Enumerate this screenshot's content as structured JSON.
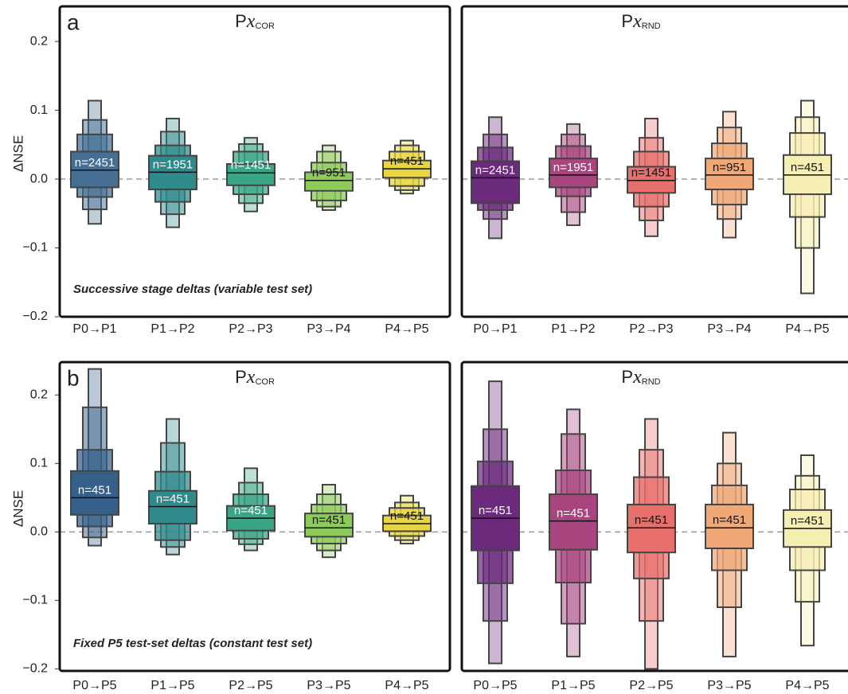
{
  "chart_data": [
    {
      "type": "boxen",
      "panel_letter": "a",
      "title": {
        "main": "P",
        "var": "x",
        "sub": "COR"
      },
      "annotation": "Successive stage deltas (variable test set)",
      "y_label": "ΔNSE",
      "categories": [
        "P0→P1",
        "P1→P2",
        "P2→P3",
        "P3→P4",
        "P4→P5"
      ],
      "ylim": [
        -0.2,
        0.251
      ],
      "reference_line": 0,
      "yticks": [
        {
          "value": -0.2,
          "label": "−0.2"
        },
        {
          "value": -0.1,
          "label": "−0.1"
        },
        {
          "value": 0,
          "label": "0.0"
        },
        0.1,
        0.2
      ],
      "boxes": [
        {
          "color": "#456f94",
          "median": 0.013,
          "label": "n=2451",
          "levels": [
            [
              -0.012,
              0.04
            ],
            [
              -0.026,
              0.065
            ],
            [
              -0.044,
              0.086
            ],
            [
              -0.065,
              0.114
            ]
          ]
        },
        {
          "color": "#2f8a8c",
          "median": 0.01,
          "label": "n=1951",
          "levels": [
            [
              -0.015,
              0.034
            ],
            [
              -0.033,
              0.049
            ],
            [
              -0.051,
              0.069
            ],
            [
              -0.07,
              0.088
            ]
          ]
        },
        {
          "color": "#3aa585",
          "median": 0.009,
          "label": "n=1451",
          "levels": [
            [
              -0.009,
              0.022
            ],
            [
              -0.022,
              0.04
            ],
            [
              -0.035,
              0.051
            ],
            [
              -0.047,
              0.06
            ]
          ]
        },
        {
          "color": "#8cca5a",
          "median": -0.002,
          "label": "n=951",
          "levels": [
            [
              -0.017,
              0.01
            ],
            [
              -0.031,
              0.024
            ],
            [
              -0.04,
              0.04
            ],
            [
              -0.045,
              0.049
            ]
          ]
        },
        {
          "color": "#e8d540",
          "median": 0.015,
          "label": "n=451",
          "levels": [
            [
              0.002,
              0.027
            ],
            [
              -0.01,
              0.04
            ],
            [
              -0.016,
              0.049
            ],
            [
              -0.021,
              0.056
            ]
          ]
        }
      ]
    },
    {
      "type": "boxen",
      "title": {
        "main": "P",
        "var": "x",
        "sub": "RND"
      },
      "categories": [
        "P0→P1",
        "P1→P2",
        "P2→P3",
        "P3→P4",
        "P4→P5"
      ],
      "ylim": [
        -0.2,
        0.251
      ],
      "reference_line": 0,
      "boxes": [
        {
          "color": "#6b2a7b",
          "median": 0.002,
          "label": "n=2451",
          "levels": [
            [
              -0.035,
              0.026
            ],
            [
              -0.045,
              0.046
            ],
            [
              -0.058,
              0.065
            ],
            [
              -0.086,
              0.09
            ]
          ]
        },
        {
          "color": "#a8457f",
          "median": 0.006,
          "label": "n=1951",
          "levels": [
            [
              -0.012,
              0.03
            ],
            [
              -0.025,
              0.048
            ],
            [
              -0.048,
              0.065
            ],
            [
              -0.067,
              0.08
            ]
          ]
        },
        {
          "color": "#e8706c",
          "median": -0.002,
          "label": "n=1451",
          "levels": [
            [
              -0.02,
              0.018
            ],
            [
              -0.04,
              0.04
            ],
            [
              -0.06,
              0.06
            ],
            [
              -0.083,
              0.088
            ]
          ]
        },
        {
          "color": "#f0a877",
          "median": 0.006,
          "label": "n=951",
          "levels": [
            [
              -0.015,
              0.03
            ],
            [
              -0.037,
              0.052
            ],
            [
              -0.058,
              0.075
            ],
            [
              -0.085,
              0.098
            ]
          ]
        },
        {
          "color": "#f6efb4",
          "median": 0.006,
          "label": "n=451",
          "levels": [
            [
              -0.022,
              0.035
            ],
            [
              -0.055,
              0.067
            ],
            [
              -0.1,
              0.09
            ],
            [
              -0.166,
              0.114
            ]
          ]
        }
      ]
    },
    {
      "type": "boxen",
      "panel_letter": "b",
      "title": {
        "main": "P",
        "var": "x",
        "sub": "COR"
      },
      "annotation": "Fixed P5 test-set deltas (constant test set)",
      "y_label": "ΔNSE",
      "categories": [
        "P0→P5",
        "P1→P5",
        "P2→P5",
        "P3→P5",
        "P4→P5"
      ],
      "ylim": [
        -0.203,
        0.248
      ],
      "reference_line": 0,
      "yticks": [
        {
          "value": -0.2,
          "label": "−0.2"
        },
        {
          "value": -0.1,
          "label": "−0.1"
        },
        {
          "value": 0,
          "label": "0.0"
        },
        0.1,
        0.2
      ],
      "boxes": [
        {
          "color": "#35608a",
          "median": 0.05,
          "label": "n=451",
          "levels": [
            [
              0.025,
              0.089
            ],
            [
              0.008,
              0.12
            ],
            [
              -0.008,
              0.182
            ],
            [
              -0.02,
              0.238
            ]
          ]
        },
        {
          "color": "#2f8a8c",
          "median": 0.037,
          "label": "n=451",
          "levels": [
            [
              0.012,
              0.06
            ],
            [
              -0.012,
              0.088
            ],
            [
              -0.022,
              0.13
            ],
            [
              -0.033,
              0.165
            ]
          ]
        },
        {
          "color": "#3aa585",
          "median": 0.02,
          "label": "n=451",
          "levels": [
            [
              0.002,
              0.038
            ],
            [
              -0.01,
              0.055
            ],
            [
              -0.018,
              0.072
            ],
            [
              -0.027,
              0.093
            ]
          ]
        },
        {
          "color": "#8cca5a",
          "median": 0.006,
          "label": "n=451",
          "levels": [
            [
              -0.007,
              0.027
            ],
            [
              -0.017,
              0.04
            ],
            [
              -0.027,
              0.055
            ],
            [
              -0.037,
              0.069
            ]
          ]
        },
        {
          "color": "#e8d540",
          "median": 0.012,
          "label": "n=451",
          "levels": [
            [
              0.001,
              0.024
            ],
            [
              -0.006,
              0.035
            ],
            [
              -0.012,
              0.043
            ],
            [
              -0.017,
              0.053
            ]
          ]
        }
      ]
    },
    {
      "type": "boxen",
      "title": {
        "main": "P",
        "var": "x",
        "sub": "RND"
      },
      "categories": [
        "P0→P5",
        "P1→P5",
        "P2→P5",
        "P3→P5",
        "P4→P5"
      ],
      "ylim": [
        -0.203,
        0.248
      ],
      "reference_line": 0,
      "boxes": [
        {
          "color": "#6b2a7b",
          "median": 0.02,
          "label": "n=451",
          "levels": [
            [
              -0.027,
              0.067
            ],
            [
              -0.075,
              0.103
            ],
            [
              -0.13,
              0.15
            ],
            [
              -0.192,
              0.22
            ]
          ]
        },
        {
          "color": "#a8457f",
          "median": 0.016,
          "label": "n=451",
          "levels": [
            [
              -0.026,
              0.055
            ],
            [
              -0.074,
              0.09
            ],
            [
              -0.134,
              0.143
            ],
            [
              -0.182,
              0.179
            ]
          ]
        },
        {
          "color": "#e8706c",
          "median": 0.006,
          "label": "n=451",
          "levels": [
            [
              -0.03,
              0.04
            ],
            [
              -0.068,
              0.08
            ],
            [
              -0.13,
              0.12
            ],
            [
              -0.2,
              0.165
            ]
          ]
        },
        {
          "color": "#f0a877",
          "median": 0.006,
          "label": "n=451",
          "levels": [
            [
              -0.024,
              0.04
            ],
            [
              -0.056,
              0.068
            ],
            [
              -0.11,
              0.1
            ],
            [
              -0.182,
              0.145
            ]
          ]
        },
        {
          "color": "#f6efb4",
          "median": 0.005,
          "label": "n=451",
          "levels": [
            [
              -0.022,
              0.032
            ],
            [
              -0.056,
              0.062
            ],
            [
              -0.102,
              0.082
            ],
            [
              -0.166,
              0.112
            ]
          ]
        }
      ]
    }
  ]
}
